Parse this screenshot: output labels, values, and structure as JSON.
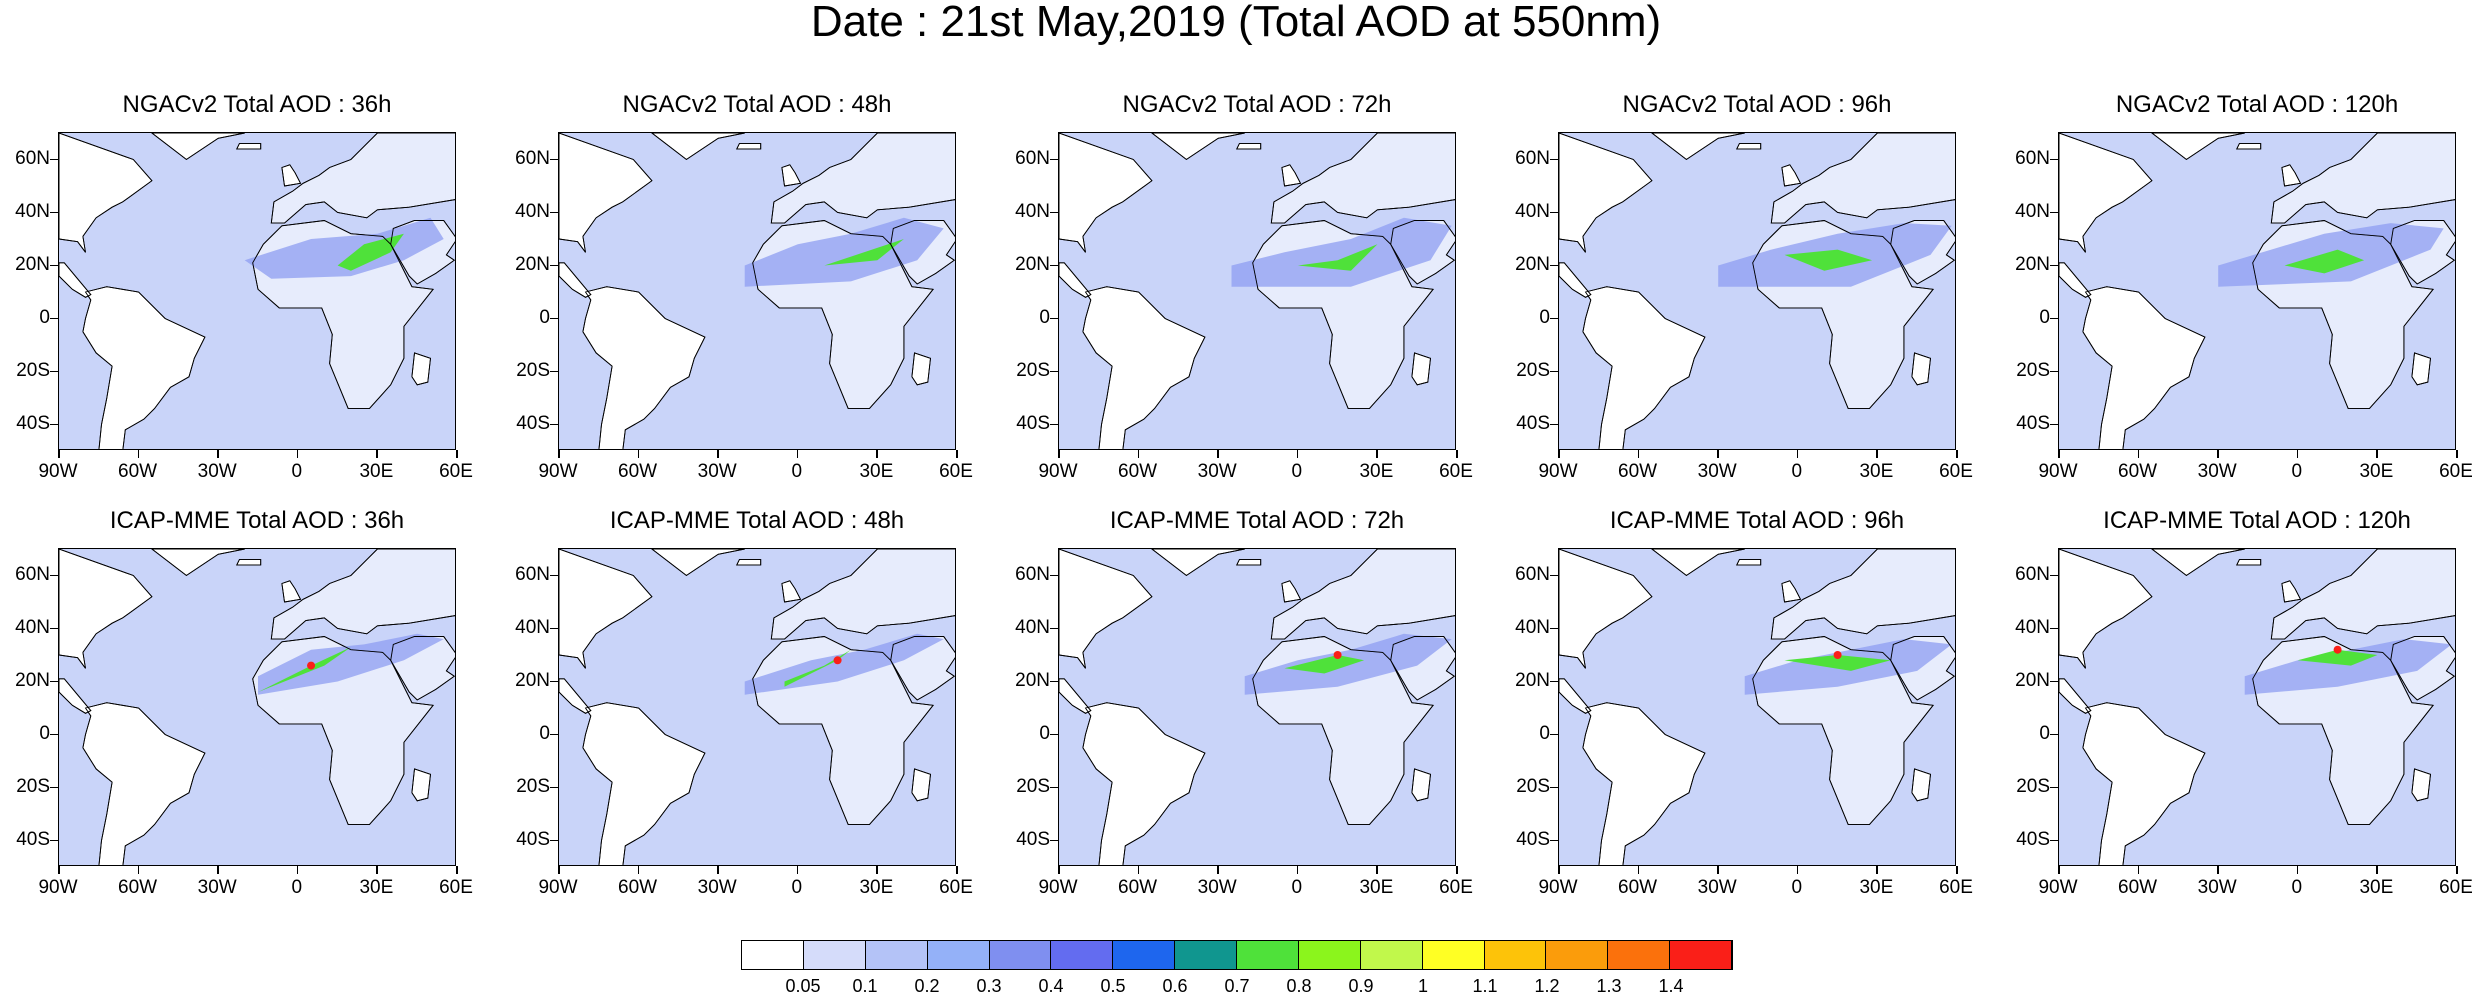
{
  "title": "Date : 21st May,2019 (Total AOD at 550nm)",
  "panels": [
    {
      "title": "NGACv2 Total AOD : 36h",
      "model": "NGACv2",
      "lead": "36h"
    },
    {
      "title": "NGACv2 Total AOD : 48h",
      "model": "NGACv2",
      "lead": "48h"
    },
    {
      "title": "NGACv2 Total AOD : 72h",
      "model": "NGACv2",
      "lead": "72h"
    },
    {
      "title": "NGACv2 Total AOD : 96h",
      "model": "NGACv2",
      "lead": "96h"
    },
    {
      "title": "NGACv2 Total AOD : 120h",
      "model": "NGACv2",
      "lead": "120h"
    },
    {
      "title": "ICAP-MME Total AOD : 36h",
      "model": "ICAP-MME",
      "lead": "36h"
    },
    {
      "title": "ICAP-MME Total AOD : 48h",
      "model": "ICAP-MME",
      "lead": "48h"
    },
    {
      "title": "ICAP-MME Total AOD : 72h",
      "model": "ICAP-MME",
      "lead": "72h"
    },
    {
      "title": "ICAP-MME Total AOD : 96h",
      "model": "ICAP-MME",
      "lead": "96h"
    },
    {
      "title": "ICAP-MME Total AOD : 120h",
      "model": "ICAP-MME",
      "lead": "120h"
    }
  ],
  "lat_labels": [
    "60N",
    "40N",
    "20N",
    "0",
    "20S",
    "40S"
  ],
  "lon_labels": [
    "90W",
    "60W",
    "30W",
    "0",
    "30E",
    "60E"
  ],
  "colorbar": {
    "labels": [
      "0.05",
      "0.1",
      "0.2",
      "0.3",
      "0.4",
      "0.5",
      "0.6",
      "0.7",
      "0.8",
      "0.9",
      "1",
      "1.1",
      "1.2",
      "1.3",
      "1.4"
    ],
    "colors": [
      "#ffffff",
      "#d5dcfa",
      "#b4c3f7",
      "#94b1f8",
      "#7f8ff0",
      "#636cf0",
      "#1e66ee",
      "#10968f",
      "#4fe13a",
      "#8bf51c",
      "#c1f84b",
      "#ffff24",
      "#fdc309",
      "#fb9c0b",
      "#fb710c",
      "#fa1f18"
    ]
  },
  "colors": {
    "ocean_background": "#c9d4f9",
    "land_background": "#ffffff",
    "dust_plume": "#8d9ef2",
    "dust_core": "#4fe13a",
    "dust_max": "#fa1f18"
  }
}
